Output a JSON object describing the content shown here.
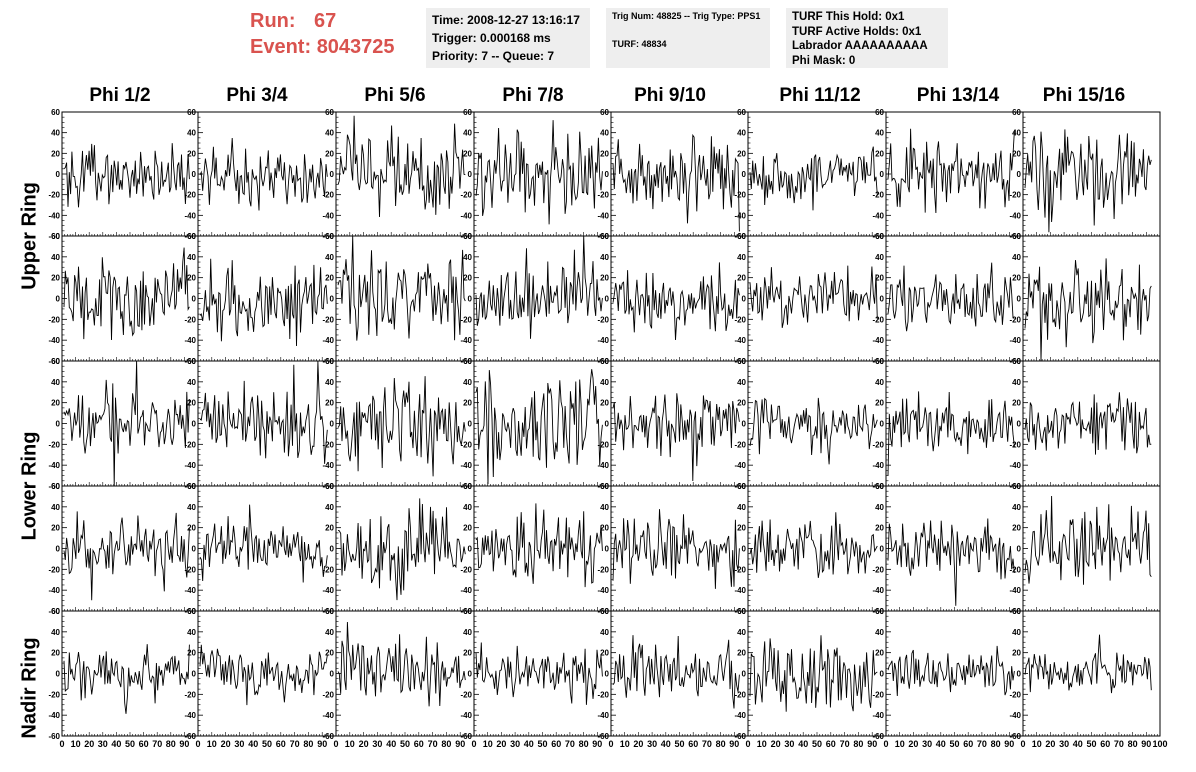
{
  "header": {
    "run_label": "Run:",
    "run_value": "67",
    "event_label": "Event:",
    "event_value": "8043725"
  },
  "info_panels": {
    "time": {
      "line1": "Time: 2008-12-27 13:16:17",
      "line2": "Trigger: 0.000168 ms",
      "line3": "Priority: 7 -- Queue: 7"
    },
    "trig": {
      "line1": "Trig Num: 48825 -- Trig Type: PPS1",
      "line2": "TURF: 48834"
    },
    "turf": {
      "line1": "TURF This Hold: 0x1",
      "line2": "TURF Active Holds: 0x1",
      "line3": "Labrador AAAAAAAAAA",
      "line4": "Phi Mask: 0"
    }
  },
  "columns": [
    "Phi 1/2",
    "Phi 3/4",
    "Phi 5/6",
    "Phi 7/8",
    "Phi 9/10",
    "Phi 11/12",
    "Phi 13/14",
    "Phi 15/16"
  ],
  "ring_labels": [
    "Upper Ring",
    "Lower Ring",
    "Nadir Ring"
  ],
  "colors": {
    "run_text": "#d9534f",
    "panel_bg": "#eeeeee",
    "trace": "#000000"
  },
  "chart_data": {
    "type": "line",
    "layout": "grid of waveform panels, 5 rows x 8 columns",
    "rows": 5,
    "cols": 8,
    "xlim": [
      0,
      100
    ],
    "ylim": [
      -60,
      60
    ],
    "x_ticks": [
      0,
      10,
      20,
      30,
      40,
      50,
      60,
      70,
      80,
      90,
      100
    ],
    "y_ticks": [
      -60,
      -40,
      -20,
      0,
      20,
      40,
      60
    ],
    "samples_per_trace": 96,
    "traces": [
      {
        "row": 0,
        "col": 0,
        "amplitude": 14,
        "seed": 101
      },
      {
        "row": 0,
        "col": 1,
        "amplitude": 14,
        "seed": 102
      },
      {
        "row": 0,
        "col": 2,
        "amplitude": 20,
        "seed": 103
      },
      {
        "row": 0,
        "col": 3,
        "amplitude": 22,
        "seed": 104
      },
      {
        "row": 0,
        "col": 4,
        "amplitude": 18,
        "seed": 105
      },
      {
        "row": 0,
        "col": 5,
        "amplitude": 13,
        "seed": 106
      },
      {
        "row": 0,
        "col": 6,
        "amplitude": 16,
        "seed": 107
      },
      {
        "row": 0,
        "col": 7,
        "amplitude": 18,
        "seed": 108
      },
      {
        "row": 1,
        "col": 0,
        "amplitude": 18,
        "seed": 201
      },
      {
        "row": 1,
        "col": 1,
        "amplitude": 18,
        "seed": 202
      },
      {
        "row": 1,
        "col": 2,
        "amplitude": 20,
        "seed": 203
      },
      {
        "row": 1,
        "col": 3,
        "amplitude": 18,
        "seed": 204
      },
      {
        "row": 1,
        "col": 4,
        "amplitude": 16,
        "seed": 205
      },
      {
        "row": 1,
        "col": 5,
        "amplitude": 12,
        "seed": 206
      },
      {
        "row": 1,
        "col": 6,
        "amplitude": 13,
        "seed": 207
      },
      {
        "row": 1,
        "col": 7,
        "amplitude": 18,
        "seed": 208
      },
      {
        "row": 2,
        "col": 0,
        "amplitude": 16,
        "seed": 301
      },
      {
        "row": 2,
        "col": 1,
        "amplitude": 16,
        "seed": 302
      },
      {
        "row": 2,
        "col": 2,
        "amplitude": 20,
        "seed": 303
      },
      {
        "row": 2,
        "col": 3,
        "amplitude": 22,
        "seed": 304
      },
      {
        "row": 2,
        "col": 4,
        "amplitude": 16,
        "seed": 305
      },
      {
        "row": 2,
        "col": 5,
        "amplitude": 14,
        "seed": 306
      },
      {
        "row": 2,
        "col": 6,
        "amplitude": 14,
        "seed": 307
      },
      {
        "row": 2,
        "col": 7,
        "amplitude": 14,
        "seed": 308
      },
      {
        "row": 3,
        "col": 0,
        "amplitude": 14,
        "seed": 401
      },
      {
        "row": 3,
        "col": 1,
        "amplitude": 14,
        "seed": 402
      },
      {
        "row": 3,
        "col": 2,
        "amplitude": 18,
        "seed": 403
      },
      {
        "row": 3,
        "col": 3,
        "amplitude": 16,
        "seed": 404
      },
      {
        "row": 3,
        "col": 4,
        "amplitude": 16,
        "seed": 405
      },
      {
        "row": 3,
        "col": 5,
        "amplitude": 14,
        "seed": 406
      },
      {
        "row": 3,
        "col": 6,
        "amplitude": 14,
        "seed": 407
      },
      {
        "row": 3,
        "col": 7,
        "amplitude": 18,
        "seed": 408
      },
      {
        "row": 4,
        "col": 0,
        "amplitude": 12,
        "seed": 501
      },
      {
        "row": 4,
        "col": 1,
        "amplitude": 12,
        "seed": 502
      },
      {
        "row": 4,
        "col": 2,
        "amplitude": 16,
        "seed": 503
      },
      {
        "row": 4,
        "col": 3,
        "amplitude": 12,
        "seed": 504
      },
      {
        "row": 4,
        "col": 4,
        "amplitude": 14,
        "seed": 505
      },
      {
        "row": 4,
        "col": 5,
        "amplitude": 18,
        "seed": 506
      },
      {
        "row": 4,
        "col": 6,
        "amplitude": 10,
        "seed": 507
      },
      {
        "row": 4,
        "col": 7,
        "amplitude": 10,
        "seed": 508
      }
    ]
  }
}
